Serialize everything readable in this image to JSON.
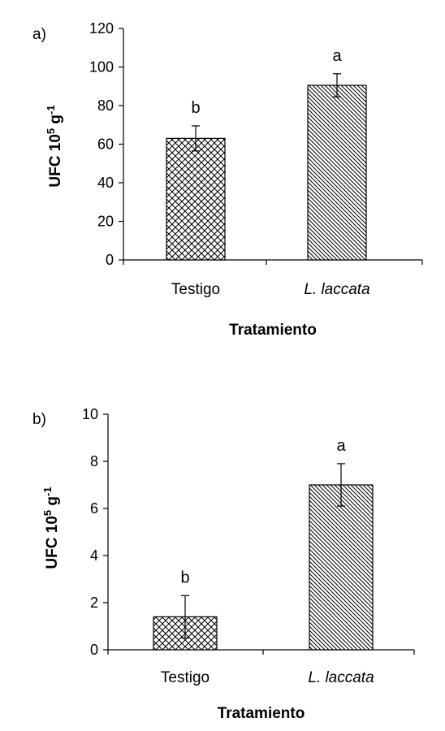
{
  "chart_data": [
    {
      "type": "bar",
      "panel_label": "a)",
      "categories": [
        "Testigo",
        "L. laccata"
      ],
      "values": [
        63,
        90.5
      ],
      "errors": [
        6.5,
        6
      ],
      "significance": [
        "b",
        "a"
      ],
      "ylim": [
        0,
        120
      ],
      "yticks": [
        0,
        20,
        40,
        60,
        80,
        100,
        120
      ],
      "ylabel": "UFC 10",
      "ylabel_sup1": "5",
      "ylabel_mid": " g",
      "ylabel_sup2": "-1",
      "xlabel": "Tratamiento",
      "patterns": [
        "crosshatch",
        "diagonal"
      ],
      "grid": false
    },
    {
      "type": "bar",
      "panel_label": "b)",
      "categories": [
        "Testigo",
        "L. laccata"
      ],
      "values": [
        1.4,
        7.0
      ],
      "errors": [
        0.9,
        0.9
      ],
      "significance": [
        "b",
        "a"
      ],
      "ylim": [
        0,
        10
      ],
      "yticks": [
        0,
        2,
        4,
        6,
        8,
        10
      ],
      "ylabel": "UFC 10",
      "ylabel_sup1": "5",
      "ylabel_mid": " g",
      "ylabel_sup2": "-1",
      "xlabel": "Tratamiento",
      "patterns": [
        "crosshatch",
        "diagonal"
      ],
      "grid": false
    }
  ]
}
